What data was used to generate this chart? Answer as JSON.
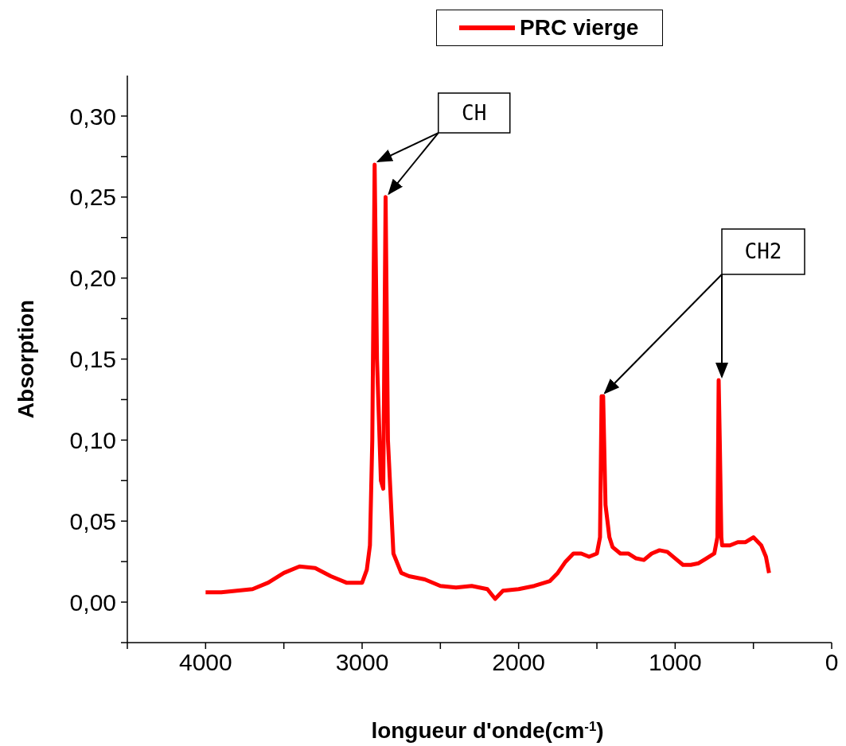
{
  "chart_data": {
    "type": "line",
    "ylabel": "Absorption",
    "xlabel": "longueur d'onde(cm$^{-1}$)",
    "xlim": [
      4500,
      0
    ],
    "xticks": [
      {
        "value": 4500,
        "label": null
      },
      4000,
      {
        "value": 3500,
        "label": null
      },
      3000,
      {
        "value": 2500,
        "label": null
      },
      2000,
      {
        "value": 1500,
        "label": null
      },
      1000,
      {
        "value": 500,
        "label": null
      },
      0
    ],
    "ylim": [
      -0.025,
      0.325
    ],
    "yticks": [
      {
        "value": -0.025,
        "label": null
      },
      {
        "value": 0,
        "label": "0,00"
      },
      {
        "value": 0.025,
        "label": null
      },
      {
        "value": 0.05,
        "label": "0,05"
      },
      {
        "value": 0.075,
        "label": null
      },
      {
        "value": 0.1,
        "label": "0,10"
      },
      {
        "value": 0.125,
        "label": null
      },
      {
        "value": 0.15,
        "label": "0,15"
      },
      {
        "value": 0.175,
        "label": null
      },
      {
        "value": 0.2,
        "label": "0,20"
      },
      {
        "value": 0.225,
        "label": null
      },
      {
        "value": 0.25,
        "label": "0,25"
      },
      {
        "value": 0.275,
        "label": null
      },
      {
        "value": 0.3,
        "label": "0,30"
      }
    ],
    "grid": false,
    "legend": "top",
    "marker": "none",
    "line_style": "solid",
    "annotations": [
      {
        "text": "CH",
        "x": 2920,
        "y": 0.27
      },
      {
        "text": "CH2",
        "x": 722,
        "y": 0.137
      }
    ],
    "x": [
      4000,
      3900,
      3800,
      3700,
      3600,
      3500,
      3400,
      3300,
      3200,
      3100,
      3000,
      2970,
      2950,
      2935,
      2920,
      2905,
      2880,
      2865,
      2850,
      2835,
      2800,
      2750,
      2700,
      2600,
      2500,
      2400,
      2300,
      2200,
      2150,
      2100,
      2000,
      1900,
      1800,
      1750,
      1700,
      1650,
      1600,
      1550,
      1500,
      1480,
      1470,
      1460,
      1445,
      1420,
      1400,
      1350,
      1300,
      1250,
      1200,
      1150,
      1100,
      1050,
      1000,
      950,
      900,
      850,
      800,
      750,
      730,
      722,
      715,
      705,
      700,
      650,
      600,
      550,
      500,
      450,
      420,
      400
    ],
    "series": [
      {
        "name": "PRC vierge",
        "color": "#ff0000",
        "values": [
          0.006,
          0.006,
          0.007,
          0.008,
          0.012,
          0.018,
          0.022,
          0.021,
          0.016,
          0.012,
          0.012,
          0.02,
          0.035,
          0.1,
          0.27,
          0.15,
          0.075,
          0.07,
          0.25,
          0.1,
          0.03,
          0.018,
          0.016,
          0.014,
          0.01,
          0.009,
          0.01,
          0.008,
          0.002,
          0.007,
          0.008,
          0.01,
          0.013,
          0.018,
          0.025,
          0.03,
          0.03,
          0.028,
          0.03,
          0.04,
          0.127,
          0.127,
          0.06,
          0.04,
          0.034,
          0.03,
          0.03,
          0.027,
          0.026,
          0.03,
          0.032,
          0.031,
          0.027,
          0.023,
          0.023,
          0.024,
          0.027,
          0.03,
          0.04,
          0.137,
          0.1,
          0.04,
          0.035,
          0.035,
          0.037,
          0.037,
          0.04,
          0.035,
          0.028,
          0.018
        ]
      }
    ]
  }
}
